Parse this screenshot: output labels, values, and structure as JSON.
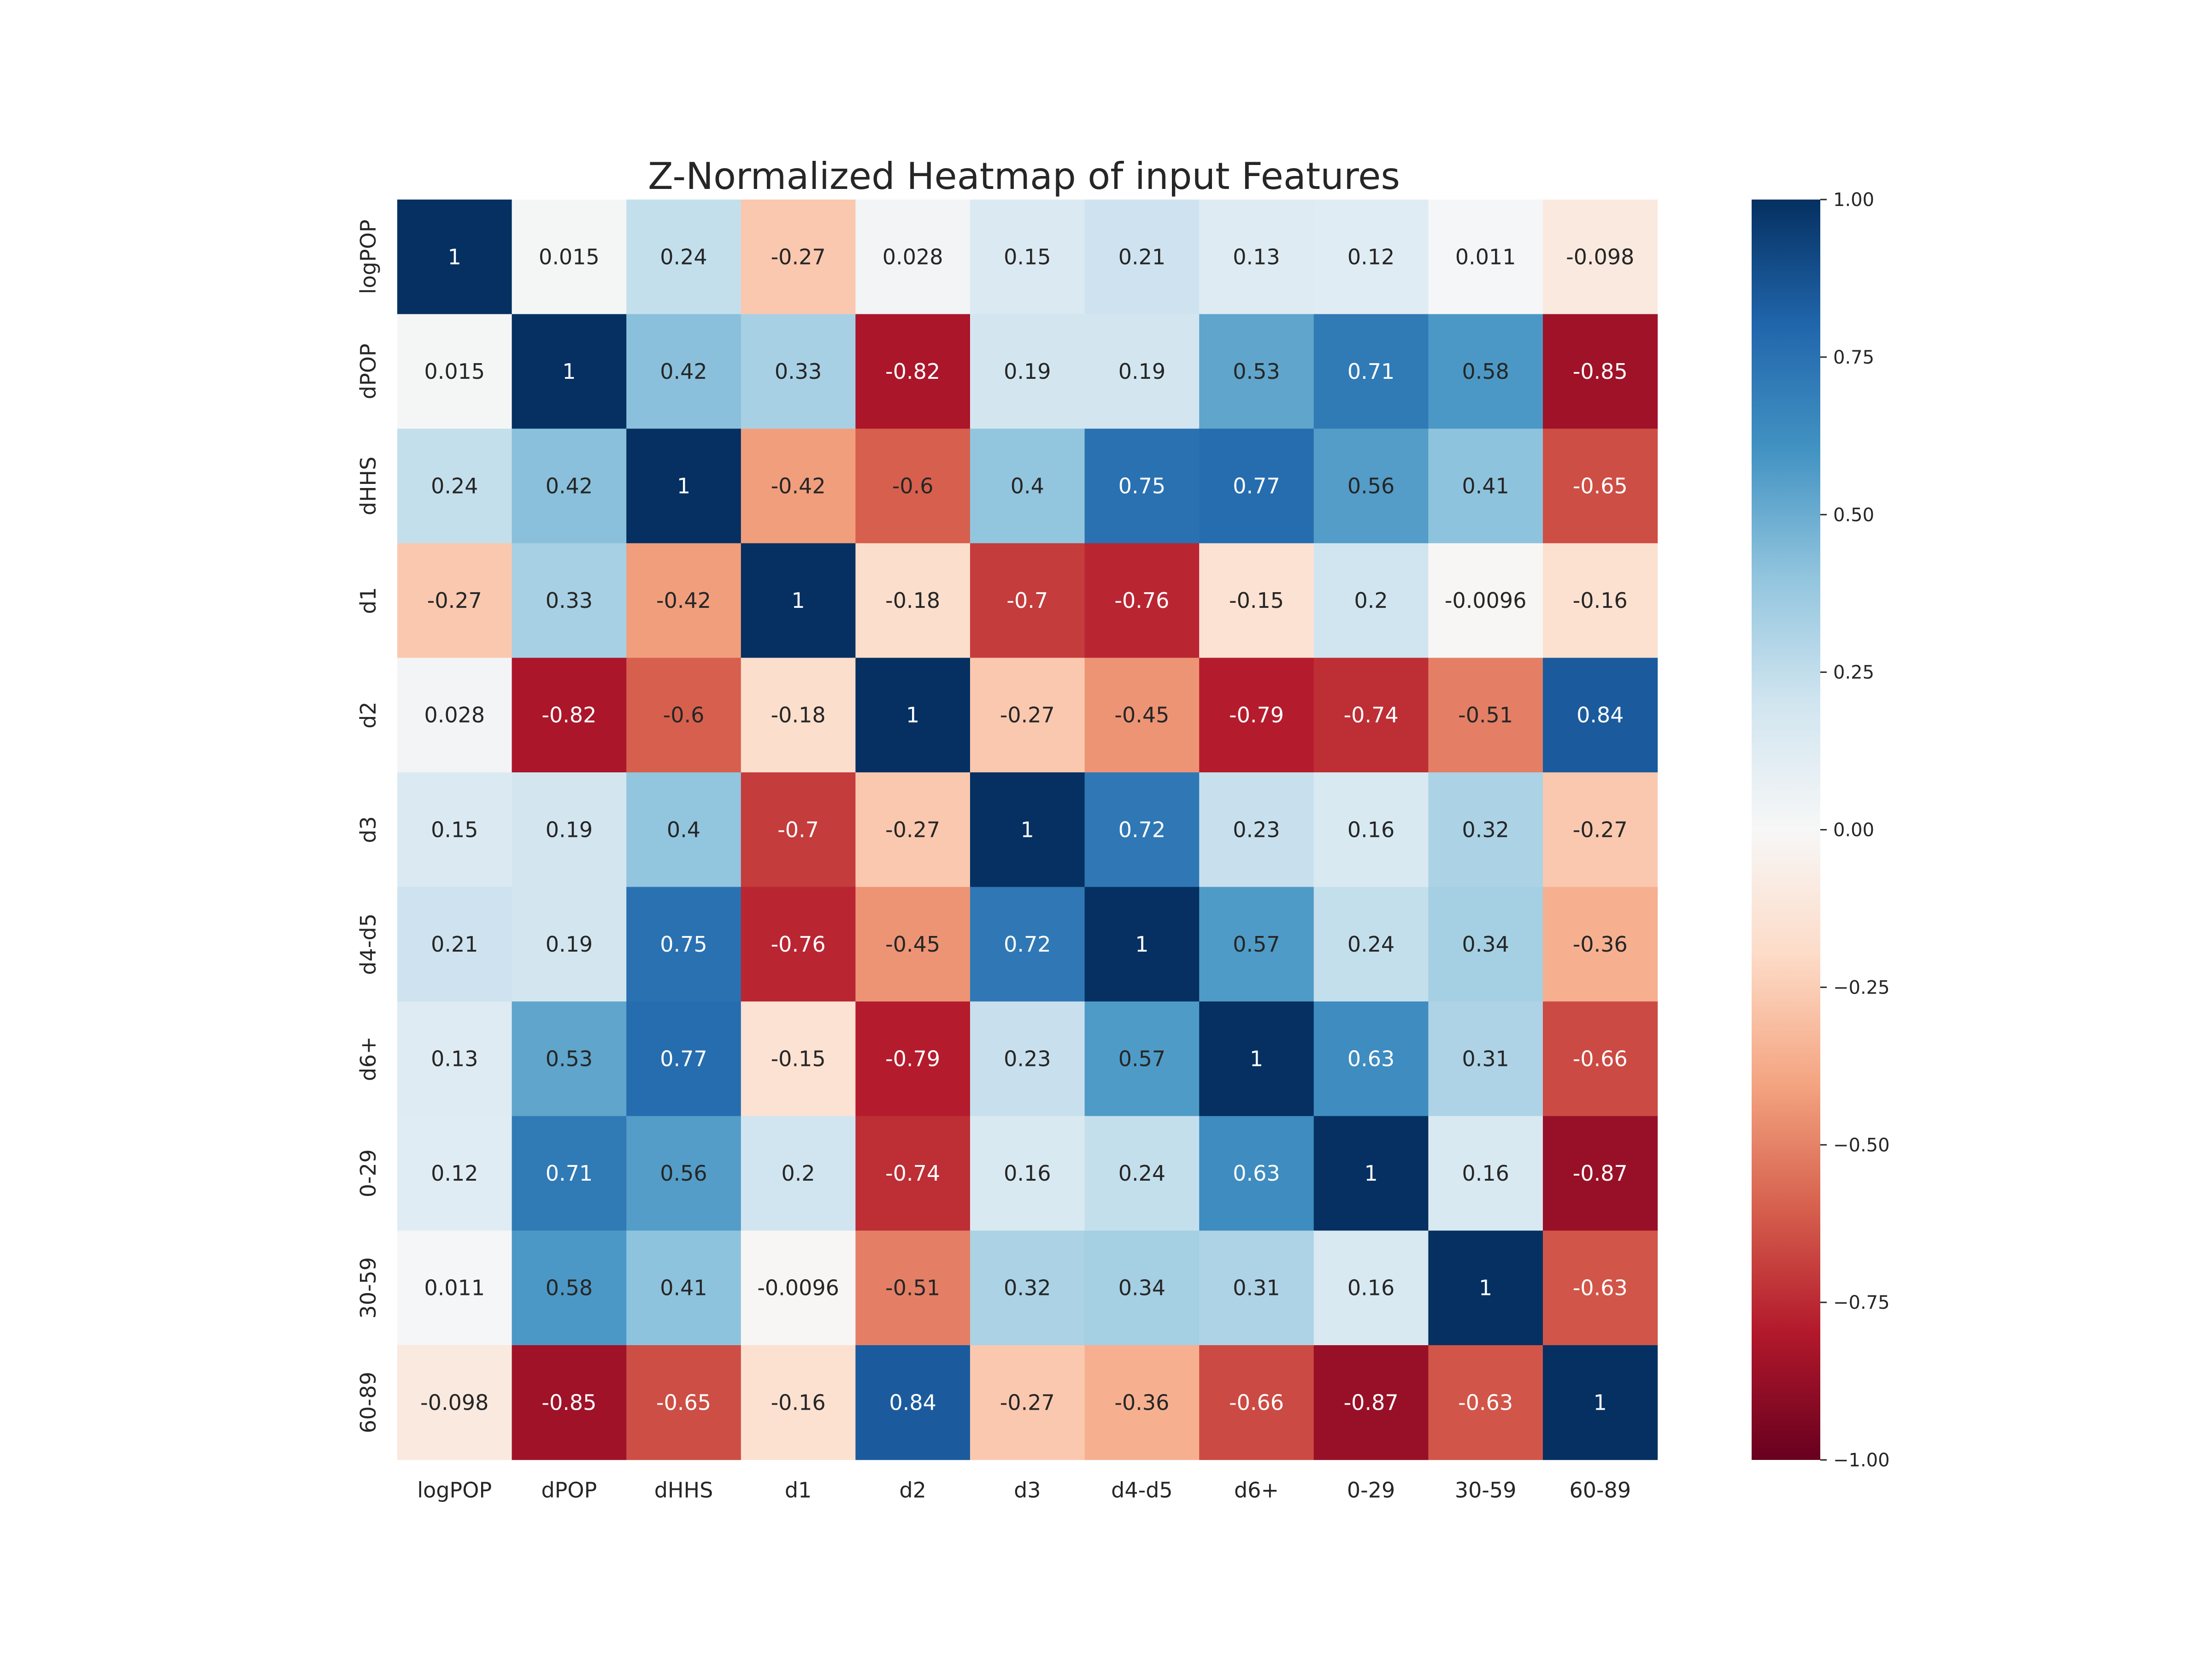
{
  "chart_data": {
    "type": "heatmap",
    "title": "Z-Normalized Heatmap of input Features",
    "xlabel": "",
    "ylabel": "",
    "x_categories": [
      "logPOP",
      "dPOP",
      "dHHS",
      "d1",
      "d2",
      "d3",
      "d4-d5",
      "d6+",
      "0-29",
      "30-59",
      "60-89"
    ],
    "y_categories": [
      "logPOP",
      "dPOP",
      "dHHS",
      "d1",
      "d2",
      "d3",
      "d4-d5",
      "d6+",
      "0-29",
      "30-59",
      "60-89"
    ],
    "values": [
      [
        1,
        0.015,
        0.24,
        -0.27,
        0.028,
        0.15,
        0.21,
        0.13,
        0.12,
        0.011,
        -0.098
      ],
      [
        0.015,
        1,
        0.42,
        0.33,
        -0.82,
        0.19,
        0.19,
        0.53,
        0.71,
        0.58,
        -0.85
      ],
      [
        0.24,
        0.42,
        1,
        -0.42,
        -0.6,
        0.4,
        0.75,
        0.77,
        0.56,
        0.41,
        -0.65
      ],
      [
        -0.27,
        0.33,
        -0.42,
        1,
        -0.18,
        -0.7,
        -0.76,
        -0.15,
        0.2,
        -0.0096,
        -0.16
      ],
      [
        0.028,
        -0.82,
        -0.6,
        -0.18,
        1,
        -0.27,
        -0.45,
        -0.79,
        -0.74,
        -0.51,
        0.84
      ],
      [
        0.15,
        0.19,
        0.4,
        -0.7,
        -0.27,
        1,
        0.72,
        0.23,
        0.16,
        0.32,
        -0.27
      ],
      [
        0.21,
        0.19,
        0.75,
        -0.76,
        -0.45,
        0.72,
        1,
        0.57,
        0.24,
        0.34,
        -0.36
      ],
      [
        0.13,
        0.53,
        0.77,
        -0.15,
        -0.79,
        0.23,
        0.57,
        1,
        0.63,
        0.31,
        -0.66
      ],
      [
        0.12,
        0.71,
        0.56,
        0.2,
        -0.74,
        0.16,
        0.24,
        0.63,
        1,
        0.16,
        -0.87
      ],
      [
        0.011,
        0.58,
        0.41,
        -0.0096,
        -0.51,
        0.32,
        0.34,
        0.31,
        0.16,
        1,
        -0.63
      ],
      [
        -0.098,
        -0.85,
        -0.65,
        -0.16,
        0.84,
        -0.27,
        -0.36,
        -0.66,
        -0.87,
        -0.63,
        1
      ]
    ],
    "value_labels": [
      [
        "1",
        "0.015",
        "0.24",
        "-0.27",
        "0.028",
        "0.15",
        "0.21",
        "0.13",
        "0.12",
        "0.011",
        "-0.098"
      ],
      [
        "0.015",
        "1",
        "0.42",
        "0.33",
        "-0.82",
        "0.19",
        "0.19",
        "0.53",
        "0.71",
        "0.58",
        "-0.85"
      ],
      [
        "0.24",
        "0.42",
        "1",
        "-0.42",
        "-0.6",
        "0.4",
        "0.75",
        "0.77",
        "0.56",
        "0.41",
        "-0.65"
      ],
      [
        "-0.27",
        "0.33",
        "-0.42",
        "1",
        "-0.18",
        "-0.7",
        "-0.76",
        "-0.15",
        "0.2",
        "-0.0096",
        "-0.16"
      ],
      [
        "0.028",
        "-0.82",
        "-0.6",
        "-0.18",
        "1",
        "-0.27",
        "-0.45",
        "-0.79",
        "-0.74",
        "-0.51",
        "0.84"
      ],
      [
        "0.15",
        "0.19",
        "0.4",
        "-0.7",
        "-0.27",
        "1",
        "0.72",
        "0.23",
        "0.16",
        "0.32",
        "-0.27"
      ],
      [
        "0.21",
        "0.19",
        "0.75",
        "-0.76",
        "-0.45",
        "0.72",
        "1",
        "0.57",
        "0.24",
        "0.34",
        "-0.36"
      ],
      [
        "0.13",
        "0.53",
        "0.77",
        "-0.15",
        "-0.79",
        "0.23",
        "0.57",
        "1",
        "0.63",
        "0.31",
        "-0.66"
      ],
      [
        "0.12",
        "0.71",
        "0.56",
        "0.2",
        "-0.74",
        "0.16",
        "0.24",
        "0.63",
        "1",
        "0.16",
        "-0.87"
      ],
      [
        "0.011",
        "0.58",
        "0.41",
        "-0.0096",
        "-0.51",
        "0.32",
        "0.34",
        "0.31",
        "0.16",
        "1",
        "-0.63"
      ],
      [
        "-0.098",
        "-0.85",
        "-0.65",
        "-0.16",
        "0.84",
        "-0.27",
        "-0.36",
        "-0.66",
        "-0.87",
        "-0.63",
        "1"
      ]
    ],
    "colormap": "RdBu",
    "vmin": -1,
    "vmax": 1,
    "colorbar": {
      "ticks": [
        1.0,
        0.75,
        0.5,
        0.25,
        0.0,
        -0.25,
        -0.5,
        -0.75,
        -1.0
      ],
      "tick_labels": [
        "1.00",
        "0.75",
        "0.50",
        "0.25",
        "0.00",
        "−0.25",
        "−0.50",
        "−0.75",
        "−1.00"
      ],
      "placement": "right"
    },
    "colormap_stops": [
      "#67001f",
      "#b2182b",
      "#d6604d",
      "#f4a582",
      "#fddbc7",
      "#f7f7f7",
      "#d1e5f0",
      "#92c5de",
      "#4393c3",
      "#2166ac",
      "#053061"
    ],
    "annotation_colors": {
      "dark_text": "#262626",
      "light_text": "#ffffff"
    },
    "grid": false
  }
}
